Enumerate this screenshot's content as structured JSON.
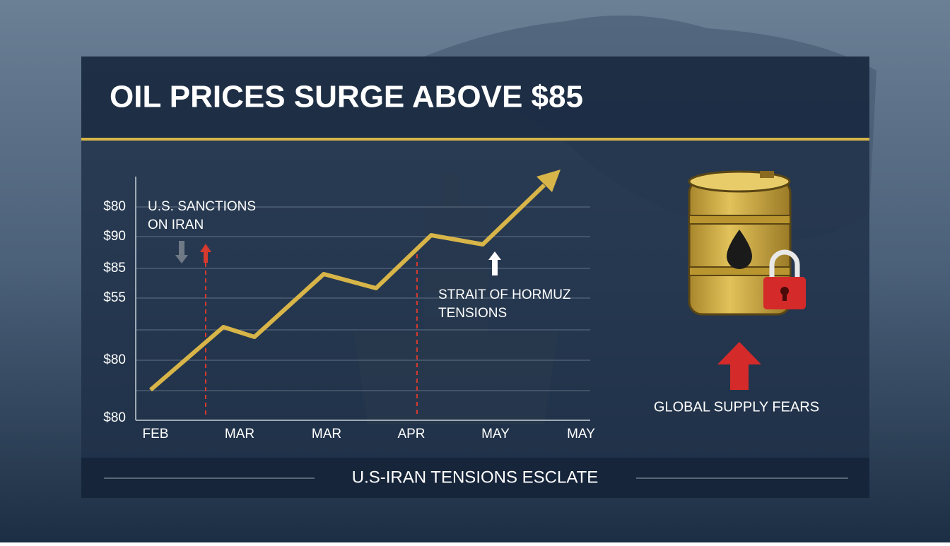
{
  "header": {
    "title": "OIL PRICES SURGE ABOVE $85"
  },
  "chart": {
    "y_labels": [
      "$80",
      "$90",
      "$85",
      "$55",
      "$80",
      "$80"
    ],
    "x_labels": [
      "FEB",
      "MAR",
      "MAR",
      "APR",
      "MAY",
      "MAY"
    ]
  },
  "annotations": {
    "sanctions": [
      "U.S. SANCTIONS",
      "ON IRAN"
    ],
    "hormuz": [
      "STRAIT OF HORMUZ",
      "TENSIONS"
    ]
  },
  "sidebar": {
    "label": "GLOBAL SUPPLY FEARS"
  },
  "footer": {
    "text": "U.S-IRAN TENSIONS ESCLATE"
  }
}
